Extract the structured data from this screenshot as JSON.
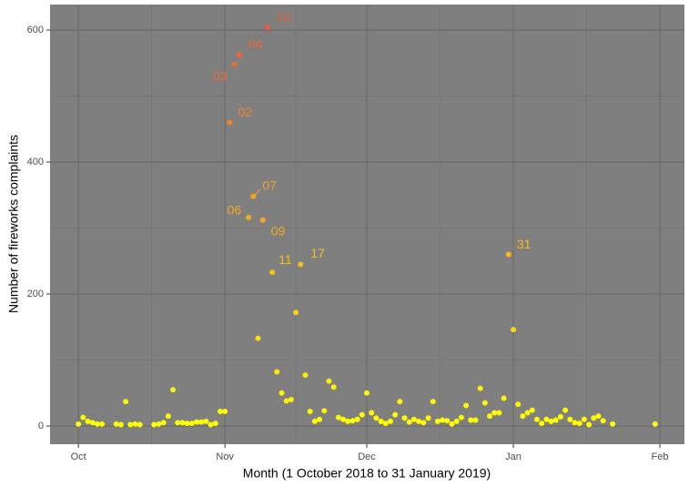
{
  "chart_data": {
    "type": "scatter",
    "x_label": "Month (1 October 2018 to 31 January 2019)",
    "y_label": "Number of fireworks complaints",
    "x": [
      0,
      1,
      2,
      3,
      4,
      5,
      8,
      9,
      10,
      11,
      12,
      13,
      16,
      17,
      18,
      19,
      20,
      21,
      22,
      23,
      24,
      25,
      26,
      27,
      28,
      29,
      30,
      31,
      32,
      33,
      34,
      36,
      37,
      38,
      39,
      40,
      41,
      42,
      43,
      44,
      45,
      46,
      47,
      48,
      49,
      50,
      51,
      52,
      53,
      54,
      55,
      56,
      57,
      58,
      59,
      60,
      61,
      62,
      63,
      64,
      65,
      66,
      67,
      68,
      69,
      70,
      71,
      72,
      73,
      74,
      75,
      76,
      77,
      78,
      79,
      80,
      81,
      82,
      83,
      84,
      85,
      86,
      87,
      88,
      89,
      90,
      91,
      92,
      93,
      94,
      95,
      96,
      97,
      98,
      99,
      100,
      101,
      102,
      103,
      104,
      105,
      106,
      107,
      108,
      109,
      110,
      111,
      113,
      122
    ],
    "values": [
      3,
      13,
      7,
      5,
      3,
      3,
      3,
      2,
      37,
      2,
      3,
      2,
      2,
      3,
      5,
      15,
      55,
      5,
      5,
      4,
      4,
      6,
      6,
      7,
      2,
      4,
      22,
      22,
      460,
      548,
      562,
      316,
      348,
      133,
      312,
      604,
      233,
      82,
      50,
      38,
      40,
      172,
      245,
      77,
      22,
      7,
      10,
      23,
      68,
      59,
      13,
      10,
      7,
      8,
      10,
      17,
      50,
      20,
      12,
      7,
      4,
      7,
      17,
      37,
      12,
      6,
      10,
      7,
      5,
      12,
      37,
      7,
      9,
      8,
      3,
      7,
      13,
      31,
      9,
      9,
      57,
      35,
      15,
      20,
      20,
      42,
      260,
      146,
      33,
      15,
      20,
      24,
      10,
      4,
      10,
      7,
      9,
      14,
      24,
      10,
      5,
      4,
      10,
      2,
      12,
      15,
      8,
      3,
      3
    ],
    "labels": [
      null,
      null,
      null,
      null,
      null,
      null,
      null,
      null,
      null,
      null,
      null,
      null,
      null,
      null,
      null,
      null,
      null,
      null,
      null,
      null,
      null,
      null,
      null,
      null,
      null,
      null,
      null,
      null,
      "02",
      "03",
      "04",
      "06",
      "07",
      null,
      "09",
      "10",
      "11",
      null,
      null,
      null,
      null,
      null,
      "17",
      null,
      null,
      null,
      null,
      null,
      null,
      null,
      null,
      null,
      null,
      null,
      null,
      null,
      null,
      null,
      null,
      null,
      null,
      null,
      null,
      null,
      null,
      null,
      null,
      null,
      null,
      null,
      null,
      null,
      null,
      null,
      null,
      null,
      null,
      null,
      null,
      null,
      null,
      null,
      null,
      null,
      null,
      null,
      "31",
      null,
      null,
      null,
      null,
      null,
      null,
      null,
      null,
      null,
      null,
      null,
      null,
      null,
      null,
      null,
      null,
      null,
      null,
      null,
      null,
      null,
      null
    ],
    "color_scale": [
      "#ffff00",
      "#ee5a3c"
    ],
    "xlim": [
      -6,
      128.2
    ],
    "ylim": [
      -27.6,
      638.6
    ],
    "xticks": [
      {
        "value": 0,
        "label": "Oct"
      },
      {
        "value": 31,
        "label": "Nov"
      },
      {
        "value": 61,
        "label": "Dec"
      },
      {
        "value": 92,
        "label": "Jan"
      },
      {
        "value": 123,
        "label": "Feb"
      }
    ],
    "yticks": [
      0,
      200,
      400,
      600
    ],
    "grid": true,
    "panel_color": "#7f7f7f"
  }
}
